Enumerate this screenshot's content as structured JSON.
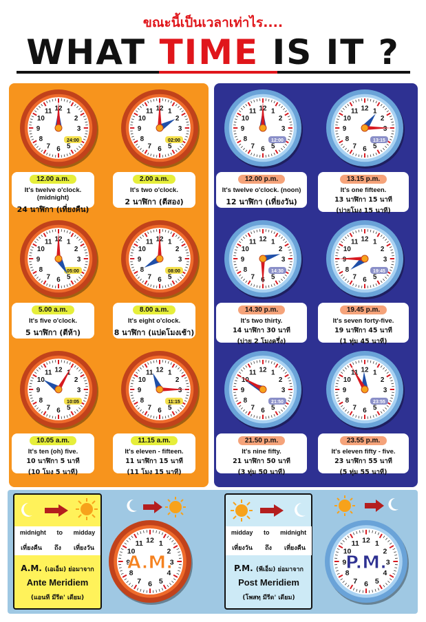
{
  "header": {
    "subtitle_th": "ขณะนี้เป็นเวลาเท่าไร....",
    "title_part1": "WHAT ",
    "title_part2": "TIME",
    "title_part3": " IS IT ?"
  },
  "colors": {
    "am_panel": "#f7941d",
    "pm_panel": "#2e3192",
    "red": "#e0161b",
    "am_pill": "#e6ee3a",
    "pm_pill": "#f5a37a"
  },
  "clocks": [
    {
      "id": "am1",
      "time": "12.00 a.m.",
      "digital": "24:00",
      "hour": 12,
      "minute": 0,
      "line1": "It's twelve o'clock. (midnight)",
      "line2": "24 นาฬิกา (เที่ยงคืน)",
      "line3": ""
    },
    {
      "id": "am2",
      "time": "2.00 a.m.",
      "digital": "02:00",
      "hour": 2,
      "minute": 0,
      "line1": "It's two o'clock.",
      "line2": "2 นาฬิกา (ตีสอง)",
      "line3": ""
    },
    {
      "id": "am3",
      "time": "5.00 a.m.",
      "digital": "05:00",
      "hour": 5,
      "minute": 0,
      "line1": "It's five o'clock.",
      "line2": "5 นาฬิกา (ตีห้า)",
      "line3": ""
    },
    {
      "id": "am4",
      "time": "8.00 a.m.",
      "digital": "08:00",
      "hour": 8,
      "minute": 0,
      "line1": "It's eight o'clock.",
      "line2": "8 นาฬิกา (แปดโมงเช้า)",
      "line3": ""
    },
    {
      "id": "am5",
      "time": "10.05 a.m.",
      "digital": "10:05",
      "hour": 10,
      "minute": 5,
      "line1": "It's ten (oh) five.",
      "line2": "10 นาฬิกา 5 นาที",
      "line3": "(10 โมง 5 นาที)"
    },
    {
      "id": "am6",
      "time": "11.15 a.m.",
      "digital": "11:15",
      "hour": 11,
      "minute": 15,
      "line1": "It's eleven - fifteen.",
      "line2": "11 นาฬิกา 15 นาที",
      "line3": "(11 โมง 15 นาที)"
    },
    {
      "id": "pm1",
      "time": "12.00 p.m.",
      "digital": "12:00",
      "hour": 12,
      "minute": 0,
      "line1": "It's twelve o'clock. (noon)",
      "line2": "12 นาฬิกา (เที่ยงวัน)",
      "line3": ""
    },
    {
      "id": "pm2",
      "time": "13.15 p.m.",
      "digital": "13:15",
      "hour": 1,
      "minute": 15,
      "line1": "It's one fifteen.",
      "line2": "13 นาฬิกา 15 นาที",
      "line3": "(บ่ายโมง 15 นาที)"
    },
    {
      "id": "pm3",
      "time": "14.30 p.m.",
      "digital": "14:30",
      "hour": 2,
      "minute": 30,
      "line1": "It's two thirty.",
      "line2": "14 นาฬิกา 30 นาที",
      "line3": "(บ่าย 2 โมงครึ่ง)"
    },
    {
      "id": "pm4",
      "time": "19.45 p.m.",
      "digital": "19:45",
      "hour": 7,
      "minute": 45,
      "line1": "It's seven forty-five.",
      "line2": "19 นาฬิกา 45 นาที",
      "line3": "(1 ทุ่ม 45 นาที)"
    },
    {
      "id": "pm5",
      "time": "21.50 p.m.",
      "digital": "21:50",
      "hour": 9,
      "minute": 50,
      "line1": "It's nine fifty.",
      "line2": "21 นาฬิกา 50 นาที",
      "line3": "(3 ทุ่ม 50 นาที)"
    },
    {
      "id": "pm6",
      "time": "23.55 p.m.",
      "digital": "23:55",
      "hour": 11,
      "minute": 55,
      "line1": "It's eleven fifty - five.",
      "line2": "23 นาฬิกา 55 นาที",
      "line3": "(5 ทุ่ม 55 นาที)"
    }
  ],
  "am_card": {
    "from_en": "midnight",
    "to_en": "to",
    "until_en": "midday",
    "from_th": "เที่ยงคืน",
    "to_th": "ถึง",
    "until_th": "เที่ยงวัน",
    "abbr": "A.M.",
    "abbr_th": "(เอเอ็ม) ย่อมาจาก",
    "full": "Ante Meridiem",
    "pron": "(แอนที มีรีด' เดียม)"
  },
  "pm_card": {
    "from_en": "midday",
    "to_en": "to",
    "until_en": "midnight",
    "from_th": "เที่ยงวัน",
    "to_th": "ถึง",
    "until_th": "เที่ยงคืน",
    "abbr": "P.M.",
    "abbr_th": "(พีเอ็ม) ย่อมาจาก",
    "full": "Post Meridiem",
    "pron": "(โพสทฺ มีรีด' เดียม)"
  },
  "big_clocks": {
    "am_label": "A.M.",
    "pm_label": "P.M."
  }
}
